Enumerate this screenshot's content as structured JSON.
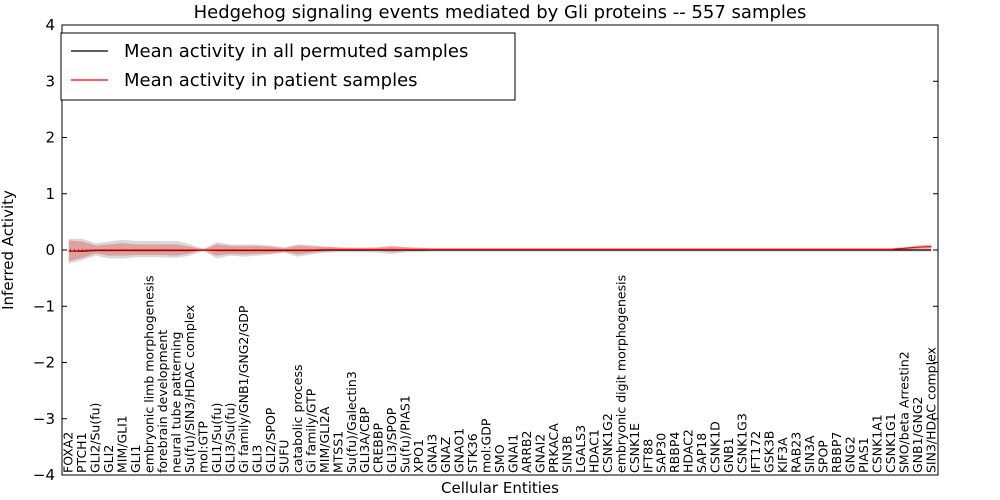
{
  "chart_data": {
    "type": "line",
    "title": "Hedgehog signaling events mediated by Gli proteins -- 557 samples",
    "xlabel": "Cellular Entities",
    "ylabel": "Inferred Activity",
    "ylim": [
      -4,
      4
    ],
    "yticks": [
      4,
      3,
      2,
      1,
      0,
      -1,
      -2,
      -3,
      -4
    ],
    "ytick_labels": [
      "4",
      "3",
      "2",
      "1",
      "0",
      "−1",
      "−2",
      "−3",
      "−4"
    ],
    "legend": {
      "position": "top-left",
      "entries": [
        {
          "label": "Mean activity in all permuted samples",
          "color": "#000000"
        },
        {
          "label": "Mean activity in patient samples",
          "color": "#ff0000"
        }
      ]
    },
    "categories": [
      "FOXA2",
      "PTCH1",
      "GLI2/Su(fu)",
      "GLI2",
      "MIM/GLI1",
      "GLI1",
      "embryonic limb morphogenesis",
      "forebrain development",
      "neural tube patterning",
      "Su(fu)/SIN3/HDAC complex",
      "mol:GTP",
      "GLI1/Su(fu)",
      "GLI3/Su(fu)",
      "Gi family/GNB1/GNG2/GDP",
      "GLI3",
      "GLI2/SPOP",
      "SUFU",
      "catabolic process",
      "Gi family/GTP",
      "MIM/GLI2A",
      "MTSS1",
      "Su(fu)/Galectin3",
      "GLI3A/CBP",
      "CREBBP",
      "GLI3/SPOP",
      "Su(fu)/PIAS1",
      "XPO1",
      "GNAI3",
      "GNAZ",
      "GNAO1",
      "STK36",
      "mol:GDP",
      "SMO",
      "GNAI1",
      "ARRB2",
      "GNAI2",
      "PRKACA",
      "SIN3B",
      "LGALS3",
      "HDAC1",
      "CSNK1G2",
      "embryonic digit morphogenesis",
      "CSNK1E",
      "IFT88",
      "SAP30",
      "RBBP4",
      "HDAC2",
      "SAP18",
      "CSNK1D",
      "GNB1",
      "CSNK1G3",
      "IFT172",
      "GSK3B",
      "KIF3A",
      "RAB23",
      "SIN3A",
      "SPOP",
      "RBBP7",
      "GNG2",
      "PIAS1",
      "CSNK1A1",
      "CSNK1G1",
      "SMO/beta Arrestin2",
      "GNB1/GNG2",
      "SIN3/HDAC complex"
    ],
    "series": [
      {
        "name": "Mean activity in all permuted samples",
        "color": "#000000",
        "values": [
          -0.02,
          -0.02,
          -0.01,
          -0.01,
          -0.01,
          -0.01,
          -0.01,
          -0.01,
          -0.01,
          -0.01,
          0,
          -0.01,
          -0.01,
          -0.01,
          -0.01,
          -0.01,
          -0.01,
          -0.01,
          -0.01,
          0,
          0,
          0,
          0,
          0,
          0,
          0,
          0,
          0,
          0,
          0,
          0,
          0,
          0,
          0,
          0,
          0,
          0,
          0,
          0,
          0,
          0,
          0,
          0,
          0,
          0,
          0,
          0,
          0,
          0,
          0,
          0,
          0,
          0,
          0,
          0,
          0,
          0,
          0,
          0,
          0,
          0,
          0,
          0,
          0,
          0
        ]
      },
      {
        "name": "Mean activity in patient samples",
        "color": "#ff0000",
        "values": [
          -0.02,
          -0.01,
          0,
          0,
          0,
          0,
          0,
          0,
          0,
          0,
          0,
          0,
          0,
          0,
          0,
          0,
          0,
          0,
          0,
          0.01,
          0.01,
          0.01,
          0.01,
          0.01,
          0.01,
          0.01,
          0.01,
          0.01,
          0.01,
          0.01,
          0.01,
          0.01,
          0.01,
          0.01,
          0.01,
          0.01,
          0.01,
          0.01,
          0.01,
          0.01,
          0.01,
          0.01,
          0.01,
          0.01,
          0.01,
          0.01,
          0.01,
          0.01,
          0.01,
          0.01,
          0.01,
          0.01,
          0.01,
          0.01,
          0.01,
          0.01,
          0.01,
          0.01,
          0.01,
          0.01,
          0.01,
          0.01,
          0.03,
          0.05,
          0.06
        ]
      }
    ],
    "bands": [
      {
        "name": "permuted spread",
        "color": "#808080",
        "upper": [
          0.2,
          0.2,
          0.12,
          0.15,
          0.18,
          0.16,
          0.16,
          0.16,
          0.16,
          0.1,
          0.02,
          0.14,
          0.1,
          0.1,
          0.1,
          0.08,
          0.05,
          0.1,
          0.09,
          0.06,
          0.04,
          0.04,
          0.04,
          0.04,
          0.06,
          0.05,
          0.04,
          0.03,
          0.03,
          0.03,
          0.03,
          0.03,
          0.03,
          0.03,
          0.03,
          0.03,
          0.03,
          0.03,
          0.03,
          0.03,
          0.03,
          0.03,
          0.03,
          0.03,
          0.03,
          0.03,
          0.03,
          0.03,
          0.03,
          0.03,
          0.03,
          0.03,
          0.03,
          0.03,
          0.03,
          0.03,
          0.03,
          0.03,
          0.03,
          0.03,
          0.03,
          0.03,
          0.03,
          0.03,
          0.03
        ],
        "lower": [
          -0.24,
          -0.18,
          -0.1,
          -0.15,
          -0.15,
          -0.13,
          -0.13,
          -0.13,
          -0.14,
          -0.1,
          -0.02,
          -0.15,
          -0.1,
          -0.12,
          -0.1,
          -0.08,
          -0.05,
          -0.12,
          -0.08,
          -0.05,
          -0.04,
          -0.04,
          -0.04,
          -0.05,
          -0.07,
          -0.04,
          -0.04,
          -0.03,
          -0.03,
          -0.03,
          -0.03,
          -0.03,
          -0.03,
          -0.03,
          -0.03,
          -0.03,
          -0.03,
          -0.03,
          -0.03,
          -0.03,
          -0.03,
          -0.03,
          -0.03,
          -0.03,
          -0.03,
          -0.03,
          -0.03,
          -0.03,
          -0.03,
          -0.03,
          -0.03,
          -0.03,
          -0.03,
          -0.03,
          -0.03,
          -0.03,
          -0.03,
          -0.03,
          -0.03,
          -0.03,
          -0.03,
          -0.03,
          -0.03,
          -0.03,
          -0.03
        ]
      },
      {
        "name": "patient spread",
        "color": "#e06060",
        "upper": [
          0.17,
          0.15,
          0.08,
          0.1,
          0.12,
          0.1,
          0.1,
          0.1,
          0.1,
          0.06,
          0.01,
          0.1,
          0.07,
          0.07,
          0.07,
          0.06,
          0.03,
          0.08,
          0.06,
          0.06,
          0.05,
          0.04,
          0.04,
          0.05,
          0.07,
          0.05,
          0.04,
          0.03,
          0.03,
          0.03,
          0.03,
          0.03,
          0.03,
          0.03,
          0.03,
          0.03,
          0.03,
          0.03,
          0.03,
          0.03,
          0.03,
          0.03,
          0.03,
          0.03,
          0.03,
          0.03,
          0.03,
          0.03,
          0.03,
          0.03,
          0.03,
          0.03,
          0.03,
          0.03,
          0.03,
          0.03,
          0.03,
          0.03,
          0.03,
          0.03,
          0.03,
          0.03,
          0.05,
          0.08,
          0.1
        ],
        "lower": [
          -0.2,
          -0.14,
          -0.06,
          -0.1,
          -0.1,
          -0.09,
          -0.09,
          -0.09,
          -0.1,
          -0.06,
          -0.01,
          -0.1,
          -0.07,
          -0.08,
          -0.07,
          -0.06,
          -0.03,
          -0.08,
          -0.05,
          -0.03,
          -0.02,
          -0.02,
          -0.02,
          -0.02,
          -0.04,
          -0.02,
          -0.02,
          -0.01,
          -0.01,
          -0.01,
          -0.01,
          -0.01,
          -0.01,
          -0.01,
          -0.01,
          -0.01,
          -0.01,
          -0.01,
          -0.01,
          -0.01,
          -0.01,
          -0.01,
          -0.01,
          -0.01,
          -0.01,
          -0.01,
          -0.01,
          -0.01,
          -0.01,
          -0.01,
          -0.01,
          -0.01,
          -0.01,
          -0.01,
          -0.01,
          -0.01,
          -0.01,
          -0.01,
          -0.01,
          -0.01,
          -0.01,
          -0.01,
          0,
          0.02,
          0.03
        ]
      }
    ]
  }
}
